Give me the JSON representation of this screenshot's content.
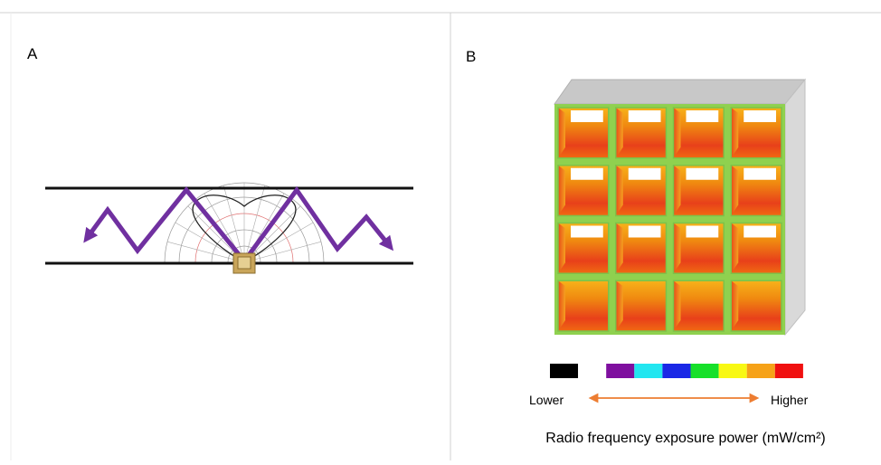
{
  "panels": [
    {
      "label": "A"
    },
    {
      "label": "B",
      "scale": {
        "low": "Lower",
        "high": "Higher",
        "caption": "Radio frequency exposure power (mW/cm²)"
      }
    }
  ]
}
